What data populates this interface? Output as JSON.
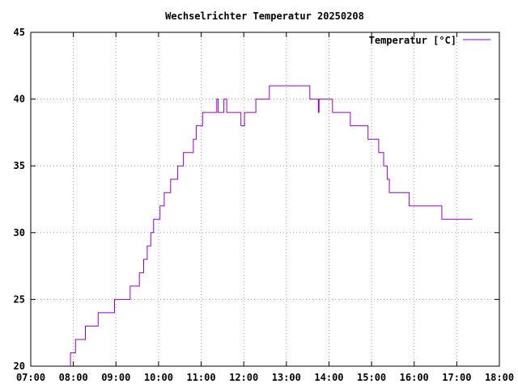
{
  "chart_data": {
    "type": "line",
    "title": "Wechselrichter Temperatur 20250208",
    "xlabel": "",
    "ylabel": "",
    "x_axis": {
      "kind": "time",
      "range": [
        "07:00",
        "18:00"
      ]
    },
    "ylim": [
      20,
      45
    ],
    "x_ticks": [
      "07:00",
      "08:00",
      "09:00",
      "10:00",
      "11:00",
      "12:00",
      "13:00",
      "14:00",
      "15:00",
      "16:00",
      "17:00",
      "18:00"
    ],
    "y_ticks": [
      "20",
      "25",
      "30",
      "35",
      "40",
      "45"
    ],
    "grid": true,
    "legend_position": "top-right",
    "series": [
      {
        "name": "Temperatur [°C]",
        "color": "#9400d3",
        "points": [
          [
            "07:56",
            20
          ],
          [
            "07:56",
            21
          ],
          [
            "08:03",
            21
          ],
          [
            "08:03",
            22
          ],
          [
            "08:17",
            22
          ],
          [
            "08:17",
            23
          ],
          [
            "08:35",
            23
          ],
          [
            "08:35",
            24
          ],
          [
            "08:58",
            24
          ],
          [
            "08:58",
            25
          ],
          [
            "09:20",
            25
          ],
          [
            "09:20",
            26
          ],
          [
            "09:33",
            26
          ],
          [
            "09:33",
            27
          ],
          [
            "09:39",
            27
          ],
          [
            "09:39",
            28
          ],
          [
            "09:44",
            28
          ],
          [
            "09:44",
            29
          ],
          [
            "09:49",
            29
          ],
          [
            "09:49",
            30
          ],
          [
            "09:53",
            30
          ],
          [
            "09:53",
            31
          ],
          [
            "10:02",
            31
          ],
          [
            "10:02",
            32
          ],
          [
            "10:08",
            32
          ],
          [
            "10:08",
            33
          ],
          [
            "10:17",
            33
          ],
          [
            "10:17",
            34
          ],
          [
            "10:27",
            34
          ],
          [
            "10:27",
            35
          ],
          [
            "10:35",
            35
          ],
          [
            "10:35",
            36
          ],
          [
            "10:49",
            36
          ],
          [
            "10:49",
            37
          ],
          [
            "10:53",
            37
          ],
          [
            "10:53",
            38
          ],
          [
            "11:02",
            38
          ],
          [
            "11:02",
            39
          ],
          [
            "11:22",
            39
          ],
          [
            "11:22",
            40
          ],
          [
            "11:24",
            40
          ],
          [
            "11:24",
            39
          ],
          [
            "11:32",
            39
          ],
          [
            "11:32",
            40
          ],
          [
            "11:36",
            40
          ],
          [
            "11:36",
            39
          ],
          [
            "11:56",
            39
          ],
          [
            "11:56",
            38
          ],
          [
            "12:01",
            38
          ],
          [
            "12:01",
            39
          ],
          [
            "12:17",
            39
          ],
          [
            "12:17",
            40
          ],
          [
            "12:36",
            40
          ],
          [
            "12:36",
            41
          ],
          [
            "13:33",
            41
          ],
          [
            "13:33",
            40
          ],
          [
            "13:45",
            40
          ],
          [
            "13:45",
            39
          ],
          [
            "13:46",
            39
          ],
          [
            "13:46",
            40
          ],
          [
            "14:05",
            40
          ],
          [
            "14:05",
            39
          ],
          [
            "14:30",
            39
          ],
          [
            "14:30",
            38
          ],
          [
            "14:55",
            38
          ],
          [
            "14:55",
            37
          ],
          [
            "15:10",
            37
          ],
          [
            "15:10",
            36
          ],
          [
            "15:17",
            36
          ],
          [
            "15:17",
            35
          ],
          [
            "15:22",
            35
          ],
          [
            "15:22",
            34
          ],
          [
            "15:25",
            34
          ],
          [
            "15:25",
            33
          ],
          [
            "15:53",
            33
          ],
          [
            "15:53",
            32
          ],
          [
            "16:39",
            32
          ],
          [
            "16:39",
            31
          ],
          [
            "17:22",
            31
          ]
        ]
      }
    ]
  }
}
